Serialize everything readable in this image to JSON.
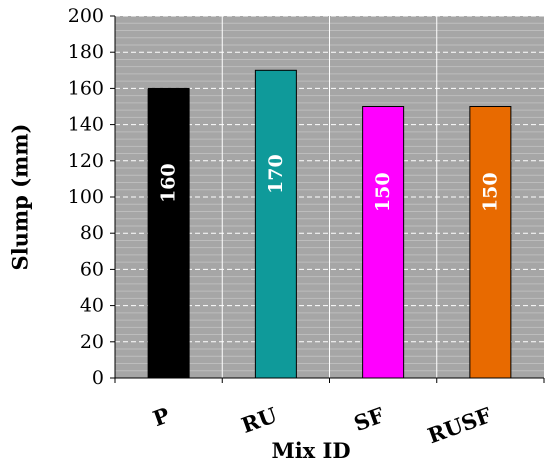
{
  "chart_data": {
    "type": "bar",
    "title": "",
    "xlabel": "Mix ID",
    "ylabel": "Slump (mm)",
    "ylim": [
      0,
      200
    ],
    "ytick_step": 20,
    "minor_grid_step": 4,
    "grid": true,
    "categories": [
      "P",
      "RU",
      "SF",
      "RUSF"
    ],
    "values": [
      160,
      170,
      150,
      150
    ],
    "data_labels": [
      "160",
      "170",
      "150",
      "150"
    ],
    "bar_colors": [
      "#000000",
      "#0f9a9a",
      "#ff00ff",
      "#e86a00"
    ],
    "plot_background": "#a6a6a6",
    "legend": "none"
  }
}
